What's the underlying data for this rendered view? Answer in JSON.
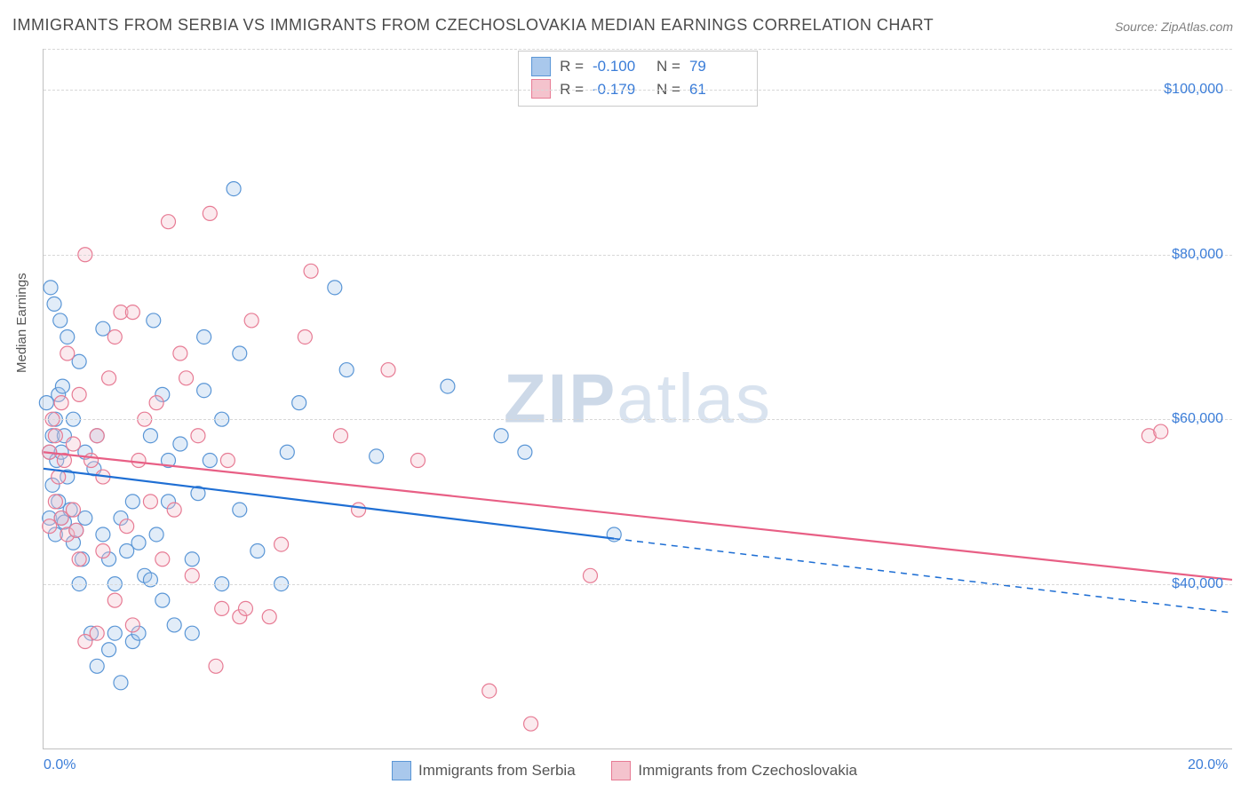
{
  "title": "IMMIGRANTS FROM SERBIA VS IMMIGRANTS FROM CZECHOSLOVAKIA MEDIAN EARNINGS CORRELATION CHART",
  "source": "Source: ZipAtlas.com",
  "ylabel": "Median Earnings",
  "watermark_bold": "ZIP",
  "watermark_light": "atlas",
  "chart": {
    "type": "scatter",
    "xlim": [
      0,
      20
    ],
    "ylim": [
      20000,
      105000
    ],
    "x_ticks": [
      {
        "v": 0,
        "label": "0.0%"
      },
      {
        "v": 20,
        "label": "20.0%"
      }
    ],
    "y_ticks": [
      {
        "v": 40000,
        "label": "$40,000"
      },
      {
        "v": 60000,
        "label": "$60,000"
      },
      {
        "v": 80000,
        "label": "$80,000"
      },
      {
        "v": 100000,
        "label": "$100,000"
      }
    ],
    "y_gridlines": [
      40000,
      60000,
      80000,
      100000,
      105000
    ],
    "background_color": "#ffffff",
    "grid_color": "#d8d8d8",
    "marker_radius": 8,
    "marker_fill_opacity": 0.35,
    "marker_stroke_width": 1.2,
    "series": [
      {
        "key": "serbia",
        "label": "Immigrants from Serbia",
        "color_fill": "#a9c8ec",
        "color_stroke": "#5a96d6",
        "line_color": "#1f6fd4",
        "line_width": 2.2,
        "R": "-0.100",
        "N": "79",
        "reg_start": {
          "x": 0,
          "y": 54000
        },
        "reg_solid_end": {
          "x": 9.6,
          "y": 45500
        },
        "reg_dash_end": {
          "x": 20,
          "y": 36500
        },
        "points": [
          [
            0.05,
            62000
          ],
          [
            0.1,
            56000
          ],
          [
            0.1,
            48000
          ],
          [
            0.12,
            76000
          ],
          [
            0.15,
            58000
          ],
          [
            0.15,
            52000
          ],
          [
            0.18,
            74000
          ],
          [
            0.2,
            60000
          ],
          [
            0.2,
            46000
          ],
          [
            0.22,
            55000
          ],
          [
            0.25,
            63000
          ],
          [
            0.25,
            50000
          ],
          [
            0.28,
            72000
          ],
          [
            0.3,
            56000
          ],
          [
            0.3,
            48000
          ],
          [
            0.32,
            64000
          ],
          [
            0.35,
            58000
          ],
          [
            0.35,
            47500
          ],
          [
            0.4,
            70000
          ],
          [
            0.4,
            53000
          ],
          [
            0.45,
            49000
          ],
          [
            0.5,
            60000
          ],
          [
            0.5,
            45000
          ],
          [
            0.55,
            46500
          ],
          [
            0.6,
            67000
          ],
          [
            0.6,
            40000
          ],
          [
            0.65,
            43000
          ],
          [
            0.7,
            56000
          ],
          [
            0.7,
            48000
          ],
          [
            0.8,
            34000
          ],
          [
            0.85,
            54000
          ],
          [
            0.9,
            58000
          ],
          [
            0.9,
            30000
          ],
          [
            1.0,
            46000
          ],
          [
            1.0,
            71000
          ],
          [
            1.1,
            43000
          ],
          [
            1.1,
            32000
          ],
          [
            1.2,
            40000
          ],
          [
            1.2,
            34000
          ],
          [
            1.3,
            48000
          ],
          [
            1.3,
            28000
          ],
          [
            1.4,
            44000
          ],
          [
            1.5,
            50000
          ],
          [
            1.5,
            33000
          ],
          [
            1.6,
            34000
          ],
          [
            1.6,
            45000
          ],
          [
            1.7,
            41000
          ],
          [
            1.8,
            58000
          ],
          [
            1.8,
            40500
          ],
          [
            1.85,
            72000
          ],
          [
            1.9,
            46000
          ],
          [
            2.0,
            63000
          ],
          [
            2.0,
            38000
          ],
          [
            2.1,
            55000
          ],
          [
            2.1,
            50000
          ],
          [
            2.2,
            35000
          ],
          [
            2.3,
            57000
          ],
          [
            2.5,
            34000
          ],
          [
            2.5,
            43000
          ],
          [
            2.6,
            51000
          ],
          [
            2.7,
            70000
          ],
          [
            2.7,
            63500
          ],
          [
            2.8,
            55000
          ],
          [
            3.0,
            60000
          ],
          [
            3.0,
            40000
          ],
          [
            3.2,
            88000
          ],
          [
            3.3,
            68000
          ],
          [
            3.3,
            49000
          ],
          [
            3.6,
            44000
          ],
          [
            4.0,
            40000
          ],
          [
            4.1,
            56000
          ],
          [
            4.3,
            62000
          ],
          [
            4.9,
            76000
          ],
          [
            5.1,
            66000
          ],
          [
            5.6,
            55500
          ],
          [
            6.8,
            64000
          ],
          [
            7.7,
            58000
          ],
          [
            8.1,
            56000
          ],
          [
            9.6,
            46000
          ]
        ]
      },
      {
        "key": "czech",
        "label": "Immigrants from Czechoslovakia",
        "color_fill": "#f4c3cd",
        "color_stroke": "#e77b94",
        "line_color": "#e85f85",
        "line_width": 2.2,
        "R": "-0.179",
        "N": "61",
        "reg_start": {
          "x": 0,
          "y": 56000
        },
        "reg_solid_end": {
          "x": 20,
          "y": 40500
        },
        "reg_dash_end": null,
        "points": [
          [
            0.1,
            56000
          ],
          [
            0.1,
            47000
          ],
          [
            0.15,
            60000
          ],
          [
            0.2,
            58000
          ],
          [
            0.2,
            50000
          ],
          [
            0.25,
            53000
          ],
          [
            0.3,
            62000
          ],
          [
            0.3,
            48000
          ],
          [
            0.35,
            55000
          ],
          [
            0.4,
            68000
          ],
          [
            0.4,
            46000
          ],
          [
            0.5,
            57000
          ],
          [
            0.5,
            49000
          ],
          [
            0.55,
            46500
          ],
          [
            0.6,
            63000
          ],
          [
            0.6,
            43000
          ],
          [
            0.7,
            80000
          ],
          [
            0.7,
            33000
          ],
          [
            0.8,
            55000
          ],
          [
            0.9,
            58000
          ],
          [
            0.9,
            34000
          ],
          [
            1.0,
            53000
          ],
          [
            1.0,
            44000
          ],
          [
            1.1,
            65000
          ],
          [
            1.2,
            70000
          ],
          [
            1.2,
            38000
          ],
          [
            1.3,
            73000
          ],
          [
            1.4,
            47000
          ],
          [
            1.5,
            73000
          ],
          [
            1.5,
            35000
          ],
          [
            1.6,
            55000
          ],
          [
            1.7,
            60000
          ],
          [
            1.8,
            50000
          ],
          [
            1.9,
            62000
          ],
          [
            2.0,
            43000
          ],
          [
            2.1,
            84000
          ],
          [
            2.2,
            49000
          ],
          [
            2.3,
            68000
          ],
          [
            2.4,
            65000
          ],
          [
            2.5,
            41000
          ],
          [
            2.6,
            58000
          ],
          [
            2.8,
            85000
          ],
          [
            2.9,
            30000
          ],
          [
            3.0,
            37000
          ],
          [
            3.1,
            55000
          ],
          [
            3.3,
            36000
          ],
          [
            3.4,
            37000
          ],
          [
            3.5,
            72000
          ],
          [
            3.8,
            36000
          ],
          [
            4.0,
            44800
          ],
          [
            4.4,
            70000
          ],
          [
            4.5,
            78000
          ],
          [
            5.0,
            58000
          ],
          [
            5.3,
            49000
          ],
          [
            5.8,
            66000
          ],
          [
            6.3,
            55000
          ],
          [
            7.5,
            27000
          ],
          [
            8.2,
            23000
          ],
          [
            9.2,
            41000
          ],
          [
            18.6,
            58000
          ],
          [
            18.8,
            58500
          ]
        ]
      }
    ]
  }
}
